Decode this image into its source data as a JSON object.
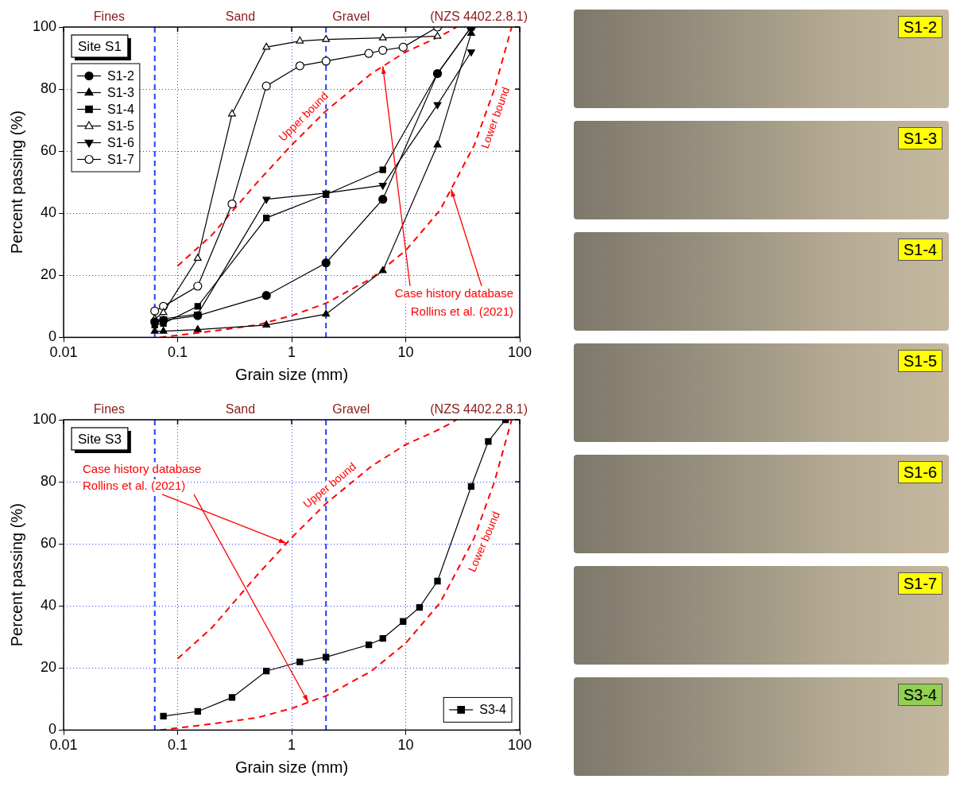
{
  "chart_data": [
    {
      "type": "line",
      "title": "Site S1",
      "x_label": "Grain size (mm)",
      "y_label": "Percent passing (%)",
      "log": "x",
      "grid": true,
      "legend": "upper left",
      "xlim": [
        0.01,
        100
      ],
      "xticks": [
        0.01,
        0.1,
        1,
        10,
        100
      ],
      "ylim": [
        0,
        100
      ],
      "yticks": [
        0,
        20,
        40,
        60,
        80,
        100
      ],
      "zones": {
        "labels": [
          "Fines",
          "Sand",
          "Gravel"
        ],
        "boundaries": [
          0.063,
          2
        ],
        "standard": "(NZS 4402.2.8.1)"
      },
      "series": [
        {
          "name": "S1-2",
          "color": "#000000",
          "marker": "circle",
          "x": [
            0.063,
            0.075,
            0.15,
            0.6,
            2,
            6.3,
            19,
            37.5
          ],
          "values": [
            5,
            5.5,
            7,
            13.5,
            24,
            44.5,
            85,
            100
          ]
        },
        {
          "name": "S1-3",
          "color": "#000000",
          "marker": "triangle",
          "x": [
            0.063,
            0.075,
            0.15,
            0.6,
            2,
            6.3,
            19,
            37.5
          ],
          "values": [
            2,
            2,
            2.5,
            4,
            7.5,
            21.5,
            62,
            98
          ]
        },
        {
          "name": "S1-4",
          "color": "#000000",
          "marker": "square",
          "x": [
            0.063,
            0.075,
            0.15,
            0.6,
            2,
            6.3,
            19,
            37.5
          ],
          "values": [
            4,
            4.5,
            10,
            38.5,
            46,
            54,
            85,
            100
          ]
        },
        {
          "name": "S1-5",
          "color": "#000000",
          "marker": "triangle_open",
          "x": [
            0.063,
            0.075,
            0.15,
            0.3,
            0.6,
            1.18,
            2,
            6.3,
            19
          ],
          "values": [
            6,
            8,
            25.5,
            72,
            93.5,
            95.5,
            96,
            96.5,
            97
          ]
        },
        {
          "name": "S1-6",
          "color": "#000000",
          "marker": "triangle_down",
          "x": [
            0.063,
            0.075,
            0.15,
            0.6,
            2,
            6.3,
            19,
            37.5
          ],
          "values": [
            5,
            6,
            7.5,
            44.5,
            46.5,
            49,
            75,
            92
          ]
        },
        {
          "name": "S1-7",
          "color": "#000000",
          "marker": "circle_open",
          "x": [
            0.063,
            0.075,
            0.15,
            0.3,
            0.6,
            1.18,
            2,
            4.75,
            6.3,
            9.5,
            19
          ],
          "values": [
            8.5,
            10,
            16.5,
            43,
            81,
            87.5,
            89,
            91.5,
            92.5,
            93.5,
            100
          ]
        }
      ],
      "bounds": [
        {
          "label": "Upper bound",
          "color": "#ff0000",
          "line_style": "dashed",
          "x": [
            0.1,
            0.2,
            0.5,
            1,
            2,
            5,
            10,
            20,
            28
          ],
          "values": [
            23,
            33,
            50,
            62,
            73,
            85,
            92,
            97,
            100
          ]
        },
        {
          "label": "Lower bound",
          "color": "#ff0000",
          "line_style": "dashed",
          "x": [
            0.07,
            0.2,
            0.5,
            1,
            2,
            5,
            10,
            20,
            40,
            60,
            85
          ],
          "values": [
            0,
            2,
            4,
            7,
            11,
            19,
            28,
            41,
            62,
            80,
            100
          ]
        }
      ],
      "annotation": {
        "text": [
          "Case history database",
          "Rollins et al. (2021)"
        ]
      }
    },
    {
      "type": "line",
      "title": "Site S3",
      "x_label": "Grain size (mm)",
      "y_label": "Percent passing (%)",
      "log": "x",
      "grid": true,
      "legend": "lower right",
      "xlim": [
        0.01,
        100
      ],
      "xticks": [
        0.01,
        0.1,
        1,
        10,
        100
      ],
      "ylim": [
        0,
        100
      ],
      "yticks": [
        0,
        20,
        40,
        60,
        80,
        100
      ],
      "zones": {
        "labels": [
          "Fines",
          "Sand",
          "Gravel"
        ],
        "boundaries": [
          0.063,
          2
        ],
        "standard": "(NZS 4402.2.8.1)"
      },
      "series": [
        {
          "name": "S3-4",
          "color": "#000000",
          "marker": "square",
          "x": [
            0.075,
            0.15,
            0.3,
            0.6,
            1.18,
            2,
            4.75,
            6.3,
            9.5,
            13.2,
            19,
            37.5,
            53,
            75
          ],
          "values": [
            4.5,
            6,
            10.5,
            19,
            22,
            23.5,
            27.5,
            29.5,
            35,
            39.5,
            48,
            78.5,
            93,
            100
          ]
        }
      ],
      "bounds": [
        {
          "label": "Upper bound",
          "color": "#ff0000",
          "line_style": "dashed",
          "x": [
            0.1,
            0.2,
            0.5,
            1,
            2,
            5,
            10,
            20,
            28
          ],
          "values": [
            23,
            33,
            50,
            62,
            73,
            85,
            92,
            97,
            100
          ]
        },
        {
          "label": "Lower bound",
          "color": "#ff0000",
          "line_style": "dashed",
          "x": [
            0.07,
            0.2,
            0.5,
            1,
            2,
            5,
            10,
            20,
            40,
            60,
            85
          ],
          "values": [
            0,
            2,
            4,
            7,
            11,
            19,
            28,
            41,
            62,
            80,
            100
          ]
        }
      ],
      "annotation": {
        "text": [
          "Case history database",
          "Rollins et al. (2021)"
        ]
      }
    }
  ],
  "photos": [
    {
      "label": "S1-2",
      "color": "#ffff00"
    },
    {
      "label": "S1-3",
      "color": "#ffff00"
    },
    {
      "label": "S1-4",
      "color": "#ffff00"
    },
    {
      "label": "S1-5",
      "color": "#ffff00"
    },
    {
      "label": "S1-6",
      "color": "#ffff00"
    },
    {
      "label": "S1-7",
      "color": "#ffff00"
    },
    {
      "label": "S3-4",
      "color": "#92d050"
    }
  ]
}
